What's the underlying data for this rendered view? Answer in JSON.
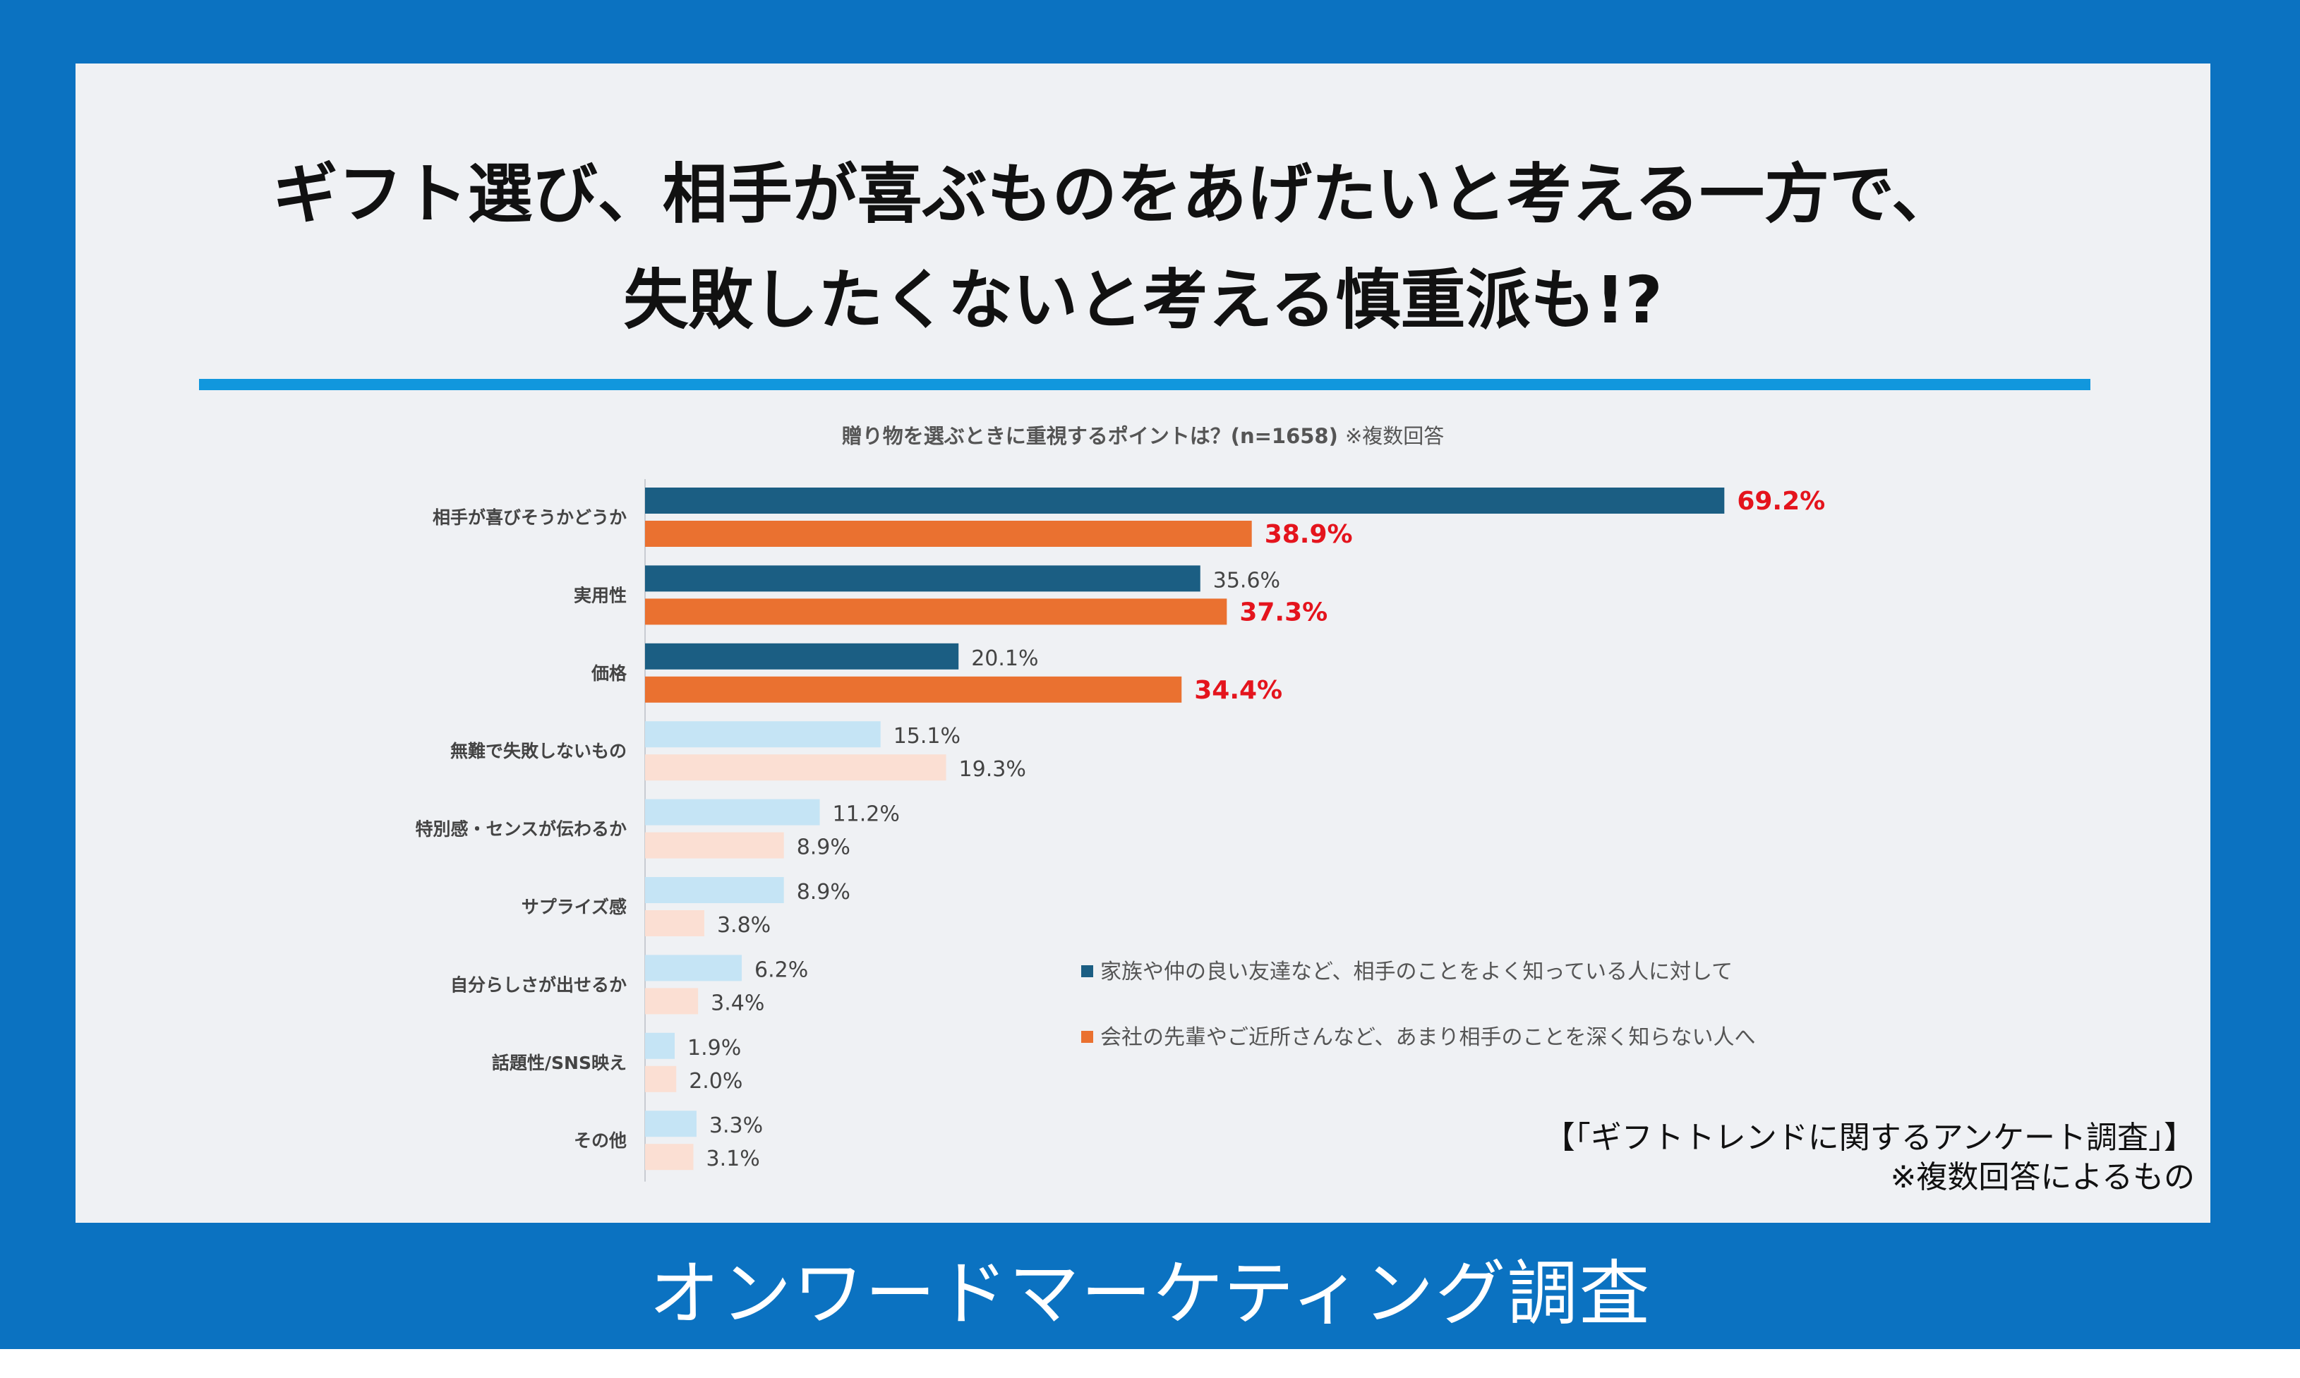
{
  "headline": {
    "line1": "ギフト選び、相手が喜ぶものをあげたいと考える一方で、",
    "line2": "失敗したくないと考える慎重派も!?"
  },
  "chart_title": {
    "main": "贈り物を選ぶときに重視するポイントは？(n=1658)",
    "note": "※複数回答"
  },
  "chart_data": {
    "type": "bar",
    "orientation": "horizontal",
    "title": "贈り物を選ぶときに重視するポイントは？(n=1658)",
    "categories": [
      "相手が喜びそうかどうか",
      "実用性",
      "価格",
      "無難で失敗しないもの",
      "特別感・センスが伝わるか",
      "サプライズ感",
      "自分らしさが出せるか",
      "話題性/SNS映え",
      "その他"
    ],
    "series": [
      {
        "name": "家族や仲の良い友達など、相手のことをよく知っている人に対して",
        "values": [
          69.2,
          35.6,
          20.1,
          15.1,
          11.2,
          8.9,
          6.2,
          1.9,
          3.3
        ],
        "labels": [
          "69.2%",
          "35.6%",
          "20.1%",
          "15.1%",
          "11.2%",
          "8.9%",
          "6.2%",
          "1.9%",
          "3.3%"
        ],
        "highlight": [
          true,
          false,
          false,
          false,
          false,
          false,
          false,
          false,
          false
        ]
      },
      {
        "name": "会社の先輩やご近所さんなど、あまり相手のことを深く知らない人へ",
        "values": [
          38.9,
          37.3,
          34.4,
          19.3,
          8.9,
          3.8,
          3.4,
          2.0,
          3.1
        ],
        "labels": [
          "38.9%",
          "37.3%",
          "34.4%",
          "19.3%",
          "8.9%",
          "3.8%",
          "3.4%",
          "2.0%",
          "3.1%"
        ],
        "highlight": [
          true,
          true,
          true,
          false,
          false,
          false,
          false,
          false,
          false
        ]
      }
    ],
    "emphasized_categories": 3,
    "xlim": [
      0,
      100
    ]
  },
  "colors": {
    "series1_strong": "#1b5e83",
    "series2_strong": "#ea7130",
    "series1_light": "#c5e4f5",
    "series2_light": "#fbdfd3",
    "highlight_text": "#e4141d",
    "frame": "#0b72c1",
    "rule": "#1197dd"
  },
  "legend": {
    "item1": "家族や仲の良い友達など、相手のことをよく知っている人に対して",
    "item2": "会社の先輩やご近所さんなど、あまり相手のことを深く知らない人へ"
  },
  "source": {
    "line1": "【「ギフトトレンドに関するアンケート調査」】",
    "line2": "※複数回答によるもの"
  },
  "footer": "オンワードマーケティング調査"
}
